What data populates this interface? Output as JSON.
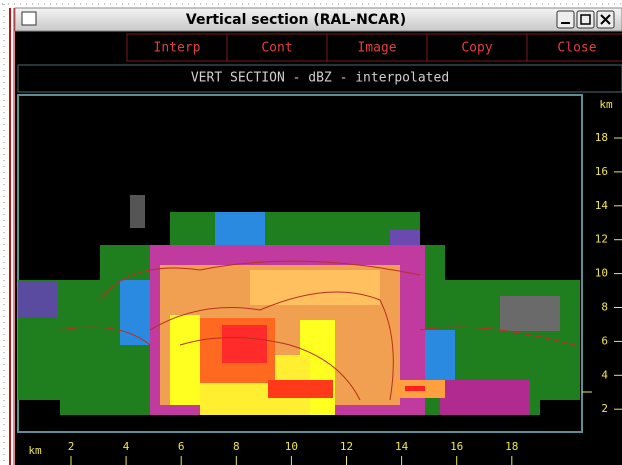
{
  "window": {
    "title": "Vertical section (RAL-NCAR)"
  },
  "toolbar": {
    "buttons": [
      "Interp",
      "Cont",
      "Image",
      "Copy",
      "Close"
    ]
  },
  "header": {
    "title": "VERT SECTION - dBZ - interpolated"
  },
  "y_axis": {
    "unit": "km",
    "ticks": [
      "18",
      "16",
      "14",
      "12",
      "10",
      "8",
      "6",
      "4",
      "2"
    ]
  },
  "x_axis": {
    "unit": "km",
    "ticks": [
      "2",
      "4",
      "6",
      "8",
      "10",
      "12",
      "14",
      "16",
      "18"
    ]
  }
}
